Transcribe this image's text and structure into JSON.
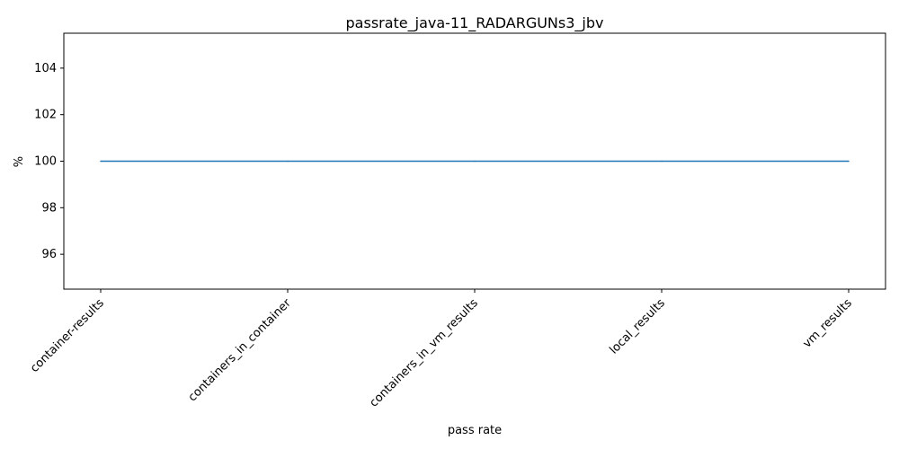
{
  "chart_data": {
    "type": "line",
    "title": "passrate_java-11_RADARGUNs3_jbv",
    "xlabel": "pass rate",
    "ylabel": "%",
    "categories": [
      "container-results",
      "containers_in_container",
      "containers_in_vm_results",
      "local_results",
      "vm_results"
    ],
    "series": [
      {
        "values": [
          100,
          100,
          100,
          100,
          100
        ],
        "color": "#1f77b4"
      }
    ],
    "ylim": [
      94.5,
      105.5
    ],
    "yticks": [
      96,
      98,
      100,
      102,
      104
    ],
    "grid": false,
    "legend": "none"
  }
}
